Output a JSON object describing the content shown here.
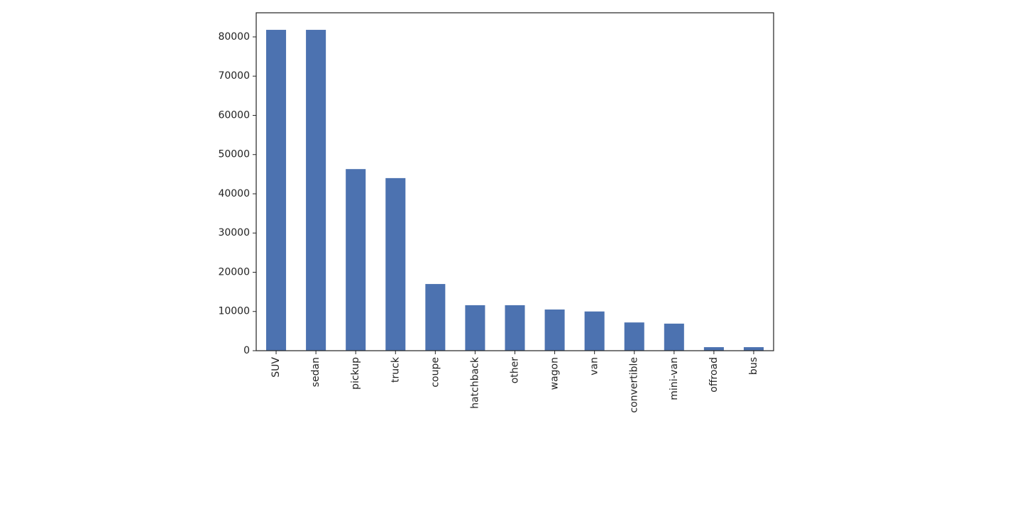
{
  "chart_data": {
    "type": "bar",
    "categories": [
      "SUV",
      "sedan",
      "pickup",
      "truck",
      "coupe",
      "hatchback",
      "other",
      "wagon",
      "van",
      "convertible",
      "mini-van",
      "offroad",
      "bus"
    ],
    "values": [
      81800,
      81800,
      46300,
      44000,
      17000,
      11600,
      11600,
      10500,
      10000,
      7200,
      6900,
      900,
      900
    ],
    "color": "#4c72b0",
    "ylim": [
      0,
      86150
    ],
    "yticks": [
      0,
      10000,
      20000,
      30000,
      40000,
      50000,
      60000,
      70000,
      80000
    ],
    "grid": false
  }
}
